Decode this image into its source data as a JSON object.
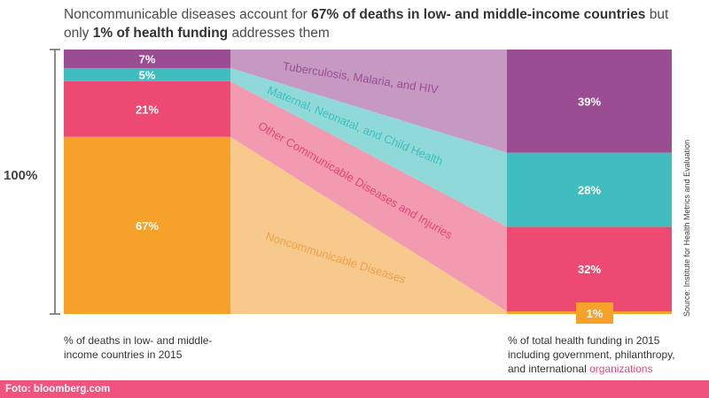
{
  "title": {
    "part1": "Noncommunicable diseases account for ",
    "bold1": "67% of deaths in low- and middle-income countries",
    "part2": " but only ",
    "bold2": "1% of health funding",
    "part3": " addresses them"
  },
  "colors": {
    "ncd": "#f5a12a",
    "other_comm": "#ec4a72",
    "maternal": "#3fbdbf",
    "tb": "#9a4d93",
    "bracket": "#666666"
  },
  "chart_data": {
    "type": "bar",
    "ylabel": "100%",
    "categories": [
      "% of deaths in low- and middle-income countries in 2015",
      "% of total health funding in 2015 including government, philanthropy, and international organizations"
    ],
    "series": [
      {
        "name": "Noncommunicable Diseases",
        "values": [
          67,
          1
        ],
        "labels": [
          "67%",
          "1%"
        ]
      },
      {
        "name": "Other Communicable Diseases and Injuries",
        "values": [
          21,
          32
        ],
        "labels": [
          "21%",
          "32%"
        ]
      },
      {
        "name": "Maternal, Neonatal, and Child Health",
        "values": [
          5,
          28
        ],
        "labels": [
          "5%",
          "28%"
        ]
      },
      {
        "name": "Tuberculosis, Malaria, and HIV",
        "values": [
          7,
          39
        ],
        "labels": [
          "7%",
          "39%"
        ]
      }
    ]
  },
  "captions": {
    "left": "% of deaths in low- and middle-income countries in 2015",
    "right_main": "% of total health funding in 2015 including government, philanthropy, and international",
    "right_tail": "organizations"
  },
  "source": "Source: Institute for Health Metrics and Evaluation",
  "footer": "Foto: bloomberg.com"
}
